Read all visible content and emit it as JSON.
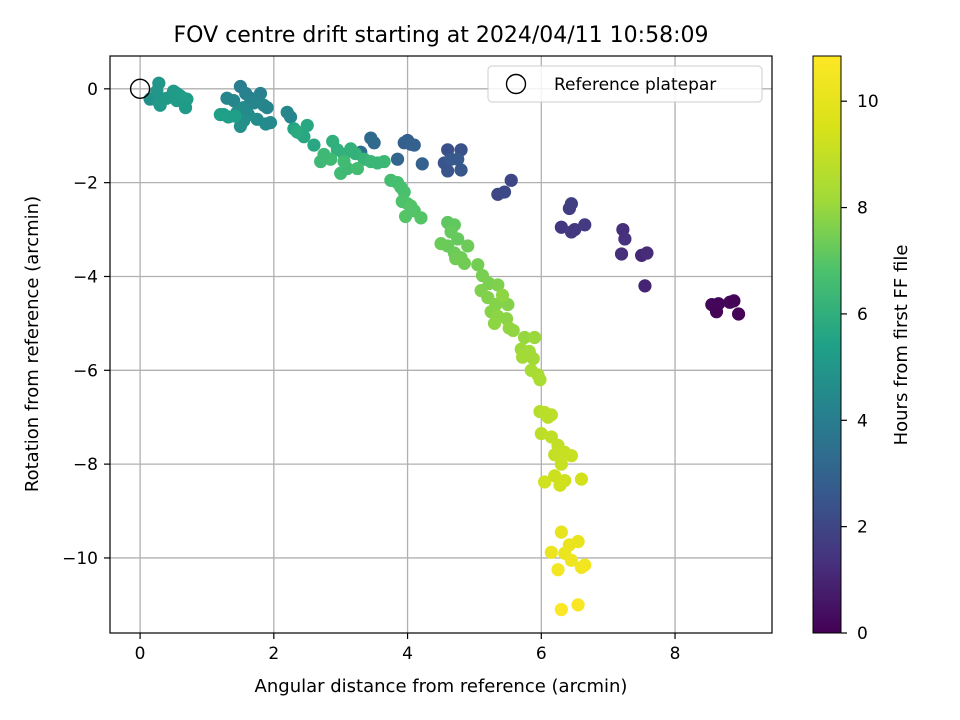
{
  "chart_data": {
    "type": "scatter",
    "title": "FOV centre drift starting at 2024/04/11 10:58:09",
    "xlabel": "Angular distance from reference (arcmin)",
    "ylabel": "Rotation from reference (arcmin)",
    "xlim": [
      -0.45,
      9.45
    ],
    "ylim": [
      -11.6,
      0.7
    ],
    "xticks": [
      0,
      2,
      4,
      6,
      8
    ],
    "yticks": [
      0,
      -2,
      -4,
      -6,
      -8,
      -10
    ],
    "xtick_labels": [
      "0",
      "2",
      "4",
      "6",
      "8"
    ],
    "ytick_labels": [
      "0",
      "−2",
      "−4",
      "−6",
      "−8",
      "−10"
    ],
    "grid": true,
    "legend": {
      "position": "top-right",
      "entries": [
        "Reference platepar"
      ]
    },
    "reference_point": {
      "label": "Reference platepar",
      "x": 0,
      "y": 0
    },
    "colorbar": {
      "label": "Hours from first FF file",
      "colormap": "viridis",
      "range": [
        0,
        10.85
      ],
      "ticks": [
        0,
        2,
        4,
        6,
        8,
        10
      ],
      "tick_labels": [
        "0",
        "2",
        "4",
        "6",
        "8",
        "10"
      ]
    },
    "series": [
      {
        "values": [
          [
            8.55,
            -4.6,
            0.2
          ],
          [
            8.62,
            -4.75,
            0.1
          ],
          [
            8.65,
            -4.58,
            0.15
          ],
          [
            8.82,
            -4.55,
            0.2
          ],
          [
            8.88,
            -4.52,
            0.1
          ],
          [
            8.95,
            -4.8,
            0.05
          ],
          [
            7.55,
            -4.2,
            1.0
          ],
          [
            7.5,
            -3.55,
            1.1
          ],
          [
            7.58,
            -3.5,
            1.2
          ],
          [
            7.2,
            -3.52,
            1.3
          ],
          [
            7.25,
            -3.2,
            1.35
          ],
          [
            7.22,
            -3.0,
            1.3
          ],
          [
            6.3,
            -2.95,
            1.5
          ],
          [
            6.45,
            -3.05,
            1.6
          ],
          [
            6.5,
            -3.0,
            1.55
          ],
          [
            6.65,
            -2.9,
            1.6
          ],
          [
            6.42,
            -2.55,
            1.7
          ],
          [
            6.45,
            -2.45,
            1.75
          ],
          [
            5.55,
            -1.95,
            2.0
          ],
          [
            5.35,
            -2.25,
            2.0
          ],
          [
            5.45,
            -2.2,
            2.1
          ],
          [
            4.6,
            -1.3,
            2.3
          ],
          [
            4.8,
            -1.3,
            2.4
          ],
          [
            4.55,
            -1.58,
            2.5
          ],
          [
            4.6,
            -1.75,
            2.5
          ],
          [
            4.65,
            -1.5,
            2.6
          ],
          [
            4.8,
            -1.73,
            2.55
          ],
          [
            4.75,
            -1.5,
            2.6
          ],
          [
            4.0,
            -1.1,
            2.8
          ],
          [
            3.95,
            -1.15,
            2.85
          ],
          [
            4.05,
            -1.18,
            2.9
          ],
          [
            4.1,
            -1.2,
            2.9
          ],
          [
            4.22,
            -1.6,
            2.9
          ],
          [
            3.85,
            -1.5,
            3.1
          ],
          [
            3.45,
            -1.05,
            3.2
          ],
          [
            3.5,
            -1.15,
            3.3
          ],
          [
            3.3,
            -1.35,
            3.4
          ],
          [
            1.5,
            0.05,
            4.0
          ],
          [
            1.58,
            -0.1,
            4.1
          ],
          [
            1.8,
            -0.1,
            4.15
          ],
          [
            1.65,
            -0.2,
            4.2
          ],
          [
            1.7,
            -0.3,
            4.25
          ],
          [
            1.85,
            -0.35,
            4.3
          ],
          [
            1.9,
            -0.4,
            4.25
          ],
          [
            2.2,
            -0.5,
            4.4
          ],
          [
            2.25,
            -0.6,
            4.3
          ],
          [
            1.3,
            -0.2,
            4.35
          ],
          [
            1.4,
            -0.25,
            4.4
          ],
          [
            1.55,
            -0.4,
            4.5
          ],
          [
            1.45,
            -0.5,
            4.6
          ],
          [
            1.62,
            -0.55,
            4.55
          ],
          [
            1.75,
            -0.65,
            4.6
          ],
          [
            1.88,
            -0.75,
            4.55
          ],
          [
            1.95,
            -0.72,
            4.5
          ],
          [
            1.55,
            -0.68,
            4.7
          ],
          [
            1.5,
            -0.8,
            4.75
          ],
          [
            0.15,
            -0.22,
            4.8
          ],
          [
            0.28,
            -0.28,
            4.9
          ],
          [
            0.28,
            0.12,
            5.0
          ],
          [
            0.25,
            -0.05,
            5.0
          ],
          [
            0.3,
            -0.35,
            5.1
          ],
          [
            0.4,
            -0.2,
            5.1
          ],
          [
            0.5,
            -0.05,
            5.2
          ],
          [
            0.55,
            -0.1,
            5.15
          ],
          [
            0.6,
            -0.15,
            5.2
          ],
          [
            0.55,
            -0.25,
            5.2
          ],
          [
            0.65,
            -0.2,
            5.25
          ],
          [
            0.7,
            -0.22,
            5.3
          ],
          [
            0.68,
            -0.4,
            5.2
          ],
          [
            1.25,
            -0.55,
            5.3
          ],
          [
            1.32,
            -0.6,
            5.3
          ],
          [
            1.42,
            -0.58,
            5.35
          ],
          [
            1.2,
            -0.55,
            5.4
          ],
          [
            2.3,
            -0.85,
            5.6
          ],
          [
            2.4,
            -0.95,
            5.65
          ],
          [
            2.5,
            -0.78,
            5.7
          ],
          [
            2.6,
            -1.2,
            5.7
          ],
          [
            2.45,
            -1.02,
            5.7
          ],
          [
            2.35,
            -0.92,
            5.8
          ],
          [
            2.88,
            -1.12,
            6.0
          ],
          [
            2.95,
            -1.3,
            6.0
          ],
          [
            3.05,
            -1.4,
            6.05
          ],
          [
            3.15,
            -1.28,
            6.1
          ],
          [
            3.22,
            -1.38,
            6.1
          ],
          [
            3.35,
            -1.5,
            6.2
          ],
          [
            3.45,
            -1.55,
            6.3
          ],
          [
            3.55,
            -1.58,
            6.3
          ],
          [
            3.65,
            -1.55,
            6.35
          ],
          [
            2.75,
            -1.4,
            6.4
          ],
          [
            2.7,
            -1.55,
            6.4
          ],
          [
            2.85,
            -1.5,
            6.45
          ],
          [
            3.0,
            -1.8,
            6.5
          ],
          [
            3.1,
            -1.7,
            6.45
          ],
          [
            3.05,
            -1.55,
            6.5
          ],
          [
            3.25,
            -1.7,
            6.55
          ],
          [
            3.75,
            -1.95,
            6.6
          ],
          [
            3.85,
            -2.0,
            6.65
          ],
          [
            3.9,
            -2.1,
            6.7
          ],
          [
            3.95,
            -2.2,
            6.75
          ],
          [
            4.0,
            -2.45,
            6.8
          ],
          [
            3.92,
            -2.4,
            6.85
          ],
          [
            4.05,
            -2.5,
            6.9
          ],
          [
            4.1,
            -2.6,
            6.9
          ],
          [
            4.2,
            -2.75,
            6.95
          ],
          [
            3.97,
            -2.72,
            6.95
          ],
          [
            4.6,
            -2.85,
            7.1
          ],
          [
            4.7,
            -2.9,
            7.15
          ],
          [
            4.65,
            -3.05,
            7.2
          ],
          [
            4.75,
            -3.2,
            7.2
          ],
          [
            4.6,
            -3.35,
            7.25
          ],
          [
            4.5,
            -3.3,
            7.3
          ],
          [
            4.7,
            -3.5,
            7.3
          ],
          [
            4.8,
            -3.6,
            7.35
          ],
          [
            4.9,
            -3.35,
            7.35
          ],
          [
            4.72,
            -3.62,
            7.4
          ],
          [
            4.85,
            -3.72,
            7.4
          ],
          [
            5.05,
            -3.75,
            7.45
          ],
          [
            5.12,
            -3.98,
            7.5
          ],
          [
            5.22,
            -4.15,
            7.55
          ],
          [
            5.35,
            -4.18,
            7.6
          ],
          [
            5.1,
            -4.3,
            7.6
          ],
          [
            5.2,
            -4.45,
            7.65
          ],
          [
            5.32,
            -4.6,
            7.7
          ],
          [
            5.5,
            -4.6,
            7.7
          ],
          [
            5.25,
            -4.75,
            7.75
          ],
          [
            5.35,
            -4.85,
            7.8
          ],
          [
            5.48,
            -4.9,
            7.8
          ],
          [
            5.3,
            -5.0,
            7.85
          ],
          [
            5.52,
            -5.1,
            7.9
          ],
          [
            5.58,
            -5.15,
            7.9
          ],
          [
            5.42,
            -4.4,
            7.85
          ],
          [
            5.75,
            -5.3,
            8.0
          ],
          [
            5.9,
            -5.3,
            8.05
          ],
          [
            5.7,
            -5.55,
            8.1
          ],
          [
            5.82,
            -5.6,
            8.15
          ],
          [
            5.72,
            -5.72,
            8.2
          ],
          [
            5.88,
            -5.75,
            8.2
          ],
          [
            5.85,
            -6.0,
            8.3
          ],
          [
            5.95,
            -6.1,
            8.35
          ],
          [
            5.98,
            -6.2,
            8.4
          ],
          [
            5.98,
            -6.88,
            8.7
          ],
          [
            6.05,
            -6.9,
            8.75
          ],
          [
            6.1,
            -7.0,
            8.8
          ],
          [
            6.15,
            -6.95,
            8.8
          ],
          [
            6.0,
            -7.35,
            8.85
          ],
          [
            6.15,
            -7.42,
            8.9
          ],
          [
            6.25,
            -7.6,
            8.95
          ],
          [
            6.2,
            -7.8,
            9.0
          ],
          [
            6.35,
            -7.75,
            9.05
          ],
          [
            6.3,
            -8.0,
            9.1
          ],
          [
            6.45,
            -7.82,
            9.1
          ],
          [
            6.2,
            -8.25,
            9.2
          ],
          [
            6.35,
            -8.35,
            9.25
          ],
          [
            6.28,
            -8.45,
            9.3
          ],
          [
            6.05,
            -8.38,
            9.3
          ],
          [
            6.6,
            -8.32,
            9.35
          ],
          [
            6.3,
            -9.45,
            10.0
          ],
          [
            6.55,
            -9.65,
            10.1
          ],
          [
            6.42,
            -9.72,
            10.15
          ],
          [
            6.35,
            -9.9,
            10.2
          ],
          [
            6.15,
            -9.88,
            10.2
          ],
          [
            6.45,
            -10.05,
            10.3
          ],
          [
            6.6,
            -10.2,
            10.4
          ],
          [
            6.65,
            -10.15,
            10.45
          ],
          [
            6.25,
            -10.25,
            10.5
          ],
          [
            6.3,
            -11.1,
            10.8
          ],
          [
            6.55,
            -11.0,
            10.7
          ]
        ]
      }
    ]
  }
}
